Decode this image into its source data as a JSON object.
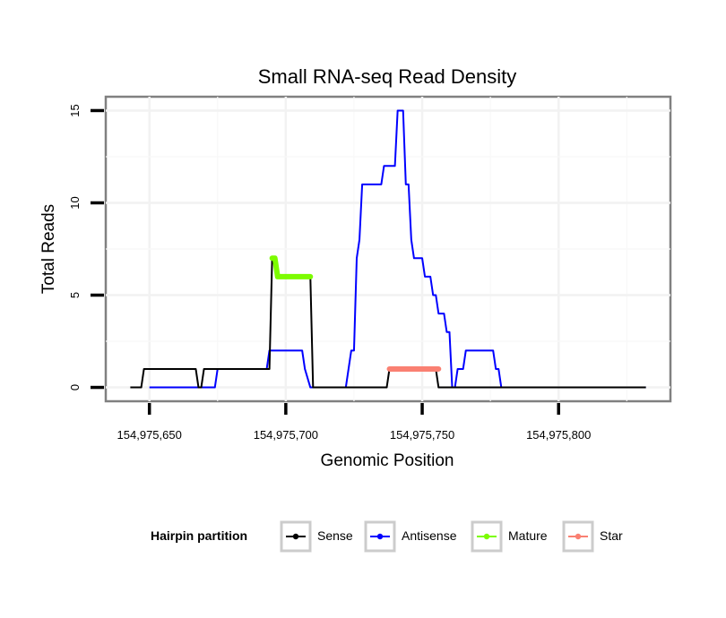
{
  "chart_data": {
    "type": "line",
    "title": "Small RNA-seq Read Density",
    "xlabel": "Genomic Position",
    "ylabel": "Total Reads",
    "xlim": [
      154975634,
      154975841
    ],
    "ylim": [
      -0.75,
      15.75
    ],
    "x_ticks": [
      {
        "value": 154975650,
        "label": "154,975,650"
      },
      {
        "value": 154975700,
        "label": "154,975,700"
      },
      {
        "value": 154975750,
        "label": "154,975,750"
      },
      {
        "value": 154975800,
        "label": "154,975,800"
      }
    ],
    "y_ticks": [
      {
        "value": 0,
        "label": "0"
      },
      {
        "value": 5,
        "label": "5"
      },
      {
        "value": 10,
        "label": "10"
      },
      {
        "value": 15,
        "label": "15"
      }
    ],
    "grid": true,
    "legend": {
      "title": "Hairpin partition",
      "position": "bottom",
      "items": [
        {
          "name": "Sense",
          "color": "#000000"
        },
        {
          "name": "Antisense",
          "color": "#0000ff"
        },
        {
          "name": "Mature",
          "color": "#7cfc00"
        },
        {
          "name": "Star",
          "color": "#fa8072"
        }
      ]
    },
    "series": [
      {
        "name": "Sense",
        "color": "#000000",
        "kind": "line",
        "points": [
          [
            154975643,
            0
          ],
          [
            154975647,
            0
          ],
          [
            154975648,
            1
          ],
          [
            154975667,
            1
          ],
          [
            154975668,
            0
          ],
          [
            154975669,
            0
          ],
          [
            154975670,
            1
          ],
          [
            154975694,
            1
          ],
          [
            154975695,
            7
          ],
          [
            154975696,
            7
          ],
          [
            154975697,
            6
          ],
          [
            154975709,
            6
          ],
          [
            154975710,
            0
          ],
          [
            154975737,
            0
          ],
          [
            154975738,
            1
          ],
          [
            154975755,
            1
          ],
          [
            154975756,
            0
          ],
          [
            154975832,
            0
          ]
        ]
      },
      {
        "name": "Antisense",
        "color": "#0000ff",
        "kind": "line",
        "points": [
          [
            154975650,
            0
          ],
          [
            154975669,
            0
          ],
          [
            154975674,
            0
          ],
          [
            154975675,
            1
          ],
          [
            154975693,
            1
          ],
          [
            154975694,
            2
          ],
          [
            154975706,
            2
          ],
          [
            154975707,
            1
          ],
          [
            154975709,
            0
          ],
          [
            154975722,
            0
          ],
          [
            154975724,
            2
          ],
          [
            154975725,
            2
          ],
          [
            154975726,
            7
          ],
          [
            154975727,
            8
          ],
          [
            154975728,
            11
          ],
          [
            154975735,
            11
          ],
          [
            154975736,
            12
          ],
          [
            154975740,
            12
          ],
          [
            154975741,
            15
          ],
          [
            154975743,
            15
          ],
          [
            154975744,
            11
          ],
          [
            154975745,
            11
          ],
          [
            154975746,
            8
          ],
          [
            154975747,
            7
          ],
          [
            154975750,
            7
          ],
          [
            154975751,
            6
          ],
          [
            154975753,
            6
          ],
          [
            154975754,
            5
          ],
          [
            154975755,
            5
          ],
          [
            154975756,
            4
          ],
          [
            154975758,
            4
          ],
          [
            154975759,
            3
          ],
          [
            154975760,
            3
          ],
          [
            154975761,
            0
          ],
          [
            154975762,
            0
          ],
          [
            154975763,
            1
          ],
          [
            154975765,
            1
          ],
          [
            154975766,
            2
          ],
          [
            154975776,
            2
          ],
          [
            154975777,
            1
          ],
          [
            154975778,
            1
          ],
          [
            154975779,
            0
          ],
          [
            154975832,
            0
          ]
        ]
      },
      {
        "name": "Mature",
        "color": "#7cfc00",
        "kind": "segment",
        "points": [
          [
            154975695,
            7
          ],
          [
            154975696,
            7
          ],
          [
            154975697,
            6
          ],
          [
            154975709,
            6
          ]
        ]
      },
      {
        "name": "Star",
        "color": "#fa8072",
        "kind": "segment",
        "points": [
          [
            154975738,
            1
          ],
          [
            154975756,
            1
          ]
        ]
      }
    ]
  }
}
